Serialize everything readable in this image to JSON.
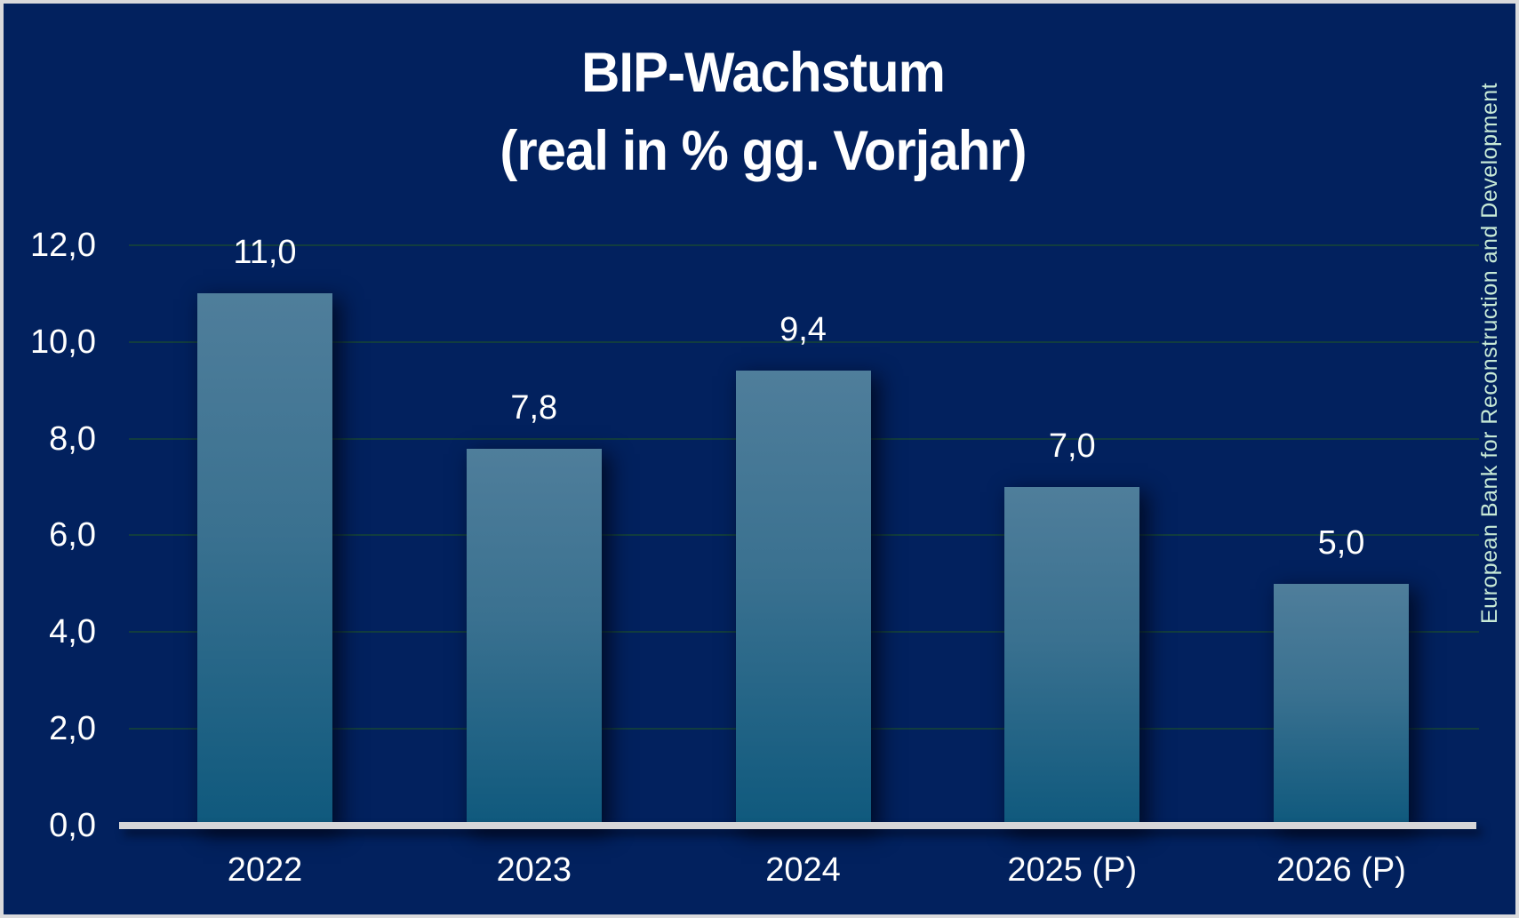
{
  "title": {
    "line1": "BIP-Wachstum",
    "line2": "(real in % gg. Vorjahr)"
  },
  "watermark": "European Bank for Reconstruction and Development",
  "colors": {
    "background": "#02215e",
    "frame_border": "#dadadc",
    "bar_gradient_top": "#4f7e9b",
    "bar_gradient_bottom": "#0f597d",
    "gridline": "#14403c",
    "axis_line": "#d6d6d8",
    "label_text": "#ffffff",
    "watermark_text": "#c7e9d6"
  },
  "chart_data": {
    "type": "bar",
    "title": "BIP-Wachstum (real in % gg. Vorjahr)",
    "categories": [
      "2022",
      "2023",
      "2024",
      "2025 (P)",
      "2026 (P)"
    ],
    "values": [
      11.0,
      7.8,
      9.4,
      7.0,
      5.0
    ],
    "value_labels": [
      "11,0",
      "7,8",
      "9,4",
      "7,0",
      "5,0"
    ],
    "xlabel": "",
    "ylabel": "",
    "ylim": [
      0,
      12
    ],
    "ytick_step": 2,
    "ytick_labels": [
      "0,0",
      "2,0",
      "4,0",
      "6,0",
      "8,0",
      "10,0",
      "12,0"
    ],
    "decimal_separator": ",",
    "grid": true,
    "legend": false,
    "bar_label_position": "above"
  }
}
